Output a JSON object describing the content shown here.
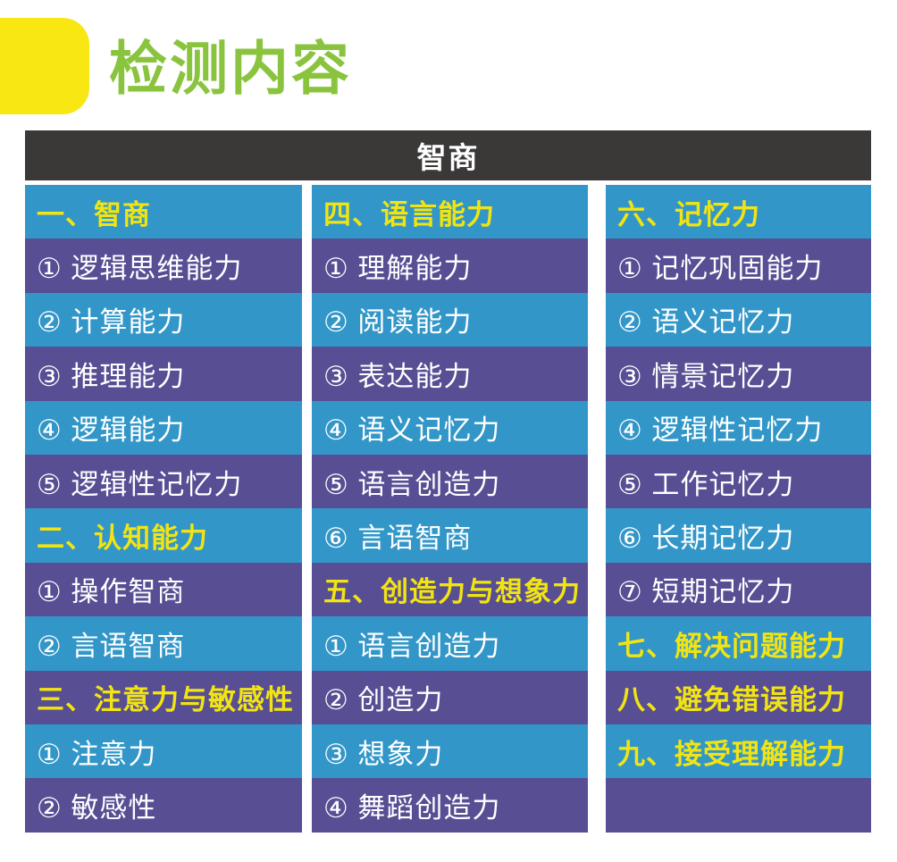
{
  "page": {
    "title": "检测内容",
    "header": "智商"
  },
  "colors": {
    "title_green": "#8ac43e",
    "accent_yellow": "#f8e712",
    "category_yellow": "#f2e412",
    "row_blue": "#3297c8",
    "row_purple": "#574e94",
    "header_dark": "#3b3838",
    "item_white": "#ffffff"
  },
  "table": {
    "columns": [
      {
        "rows": [
          {
            "type": "category",
            "label": "一、智商"
          },
          {
            "type": "item",
            "label": "① 逻辑思维能力"
          },
          {
            "type": "item",
            "label": "② 计算能力"
          },
          {
            "type": "item",
            "label": "③ 推理能力"
          },
          {
            "type": "item",
            "label": "④ 逻辑能力"
          },
          {
            "type": "item",
            "label": "⑤ 逻辑性记忆力"
          },
          {
            "type": "category",
            "label": "二、认知能力"
          },
          {
            "type": "item",
            "label": "① 操作智商"
          },
          {
            "type": "item",
            "label": "② 言语智商"
          },
          {
            "type": "category",
            "label": "三、注意力与敏感性"
          },
          {
            "type": "item",
            "label": "① 注意力"
          },
          {
            "type": "item",
            "label": "② 敏感性"
          }
        ]
      },
      {
        "rows": [
          {
            "type": "category",
            "label": "四、语言能力"
          },
          {
            "type": "item",
            "label": "① 理解能力"
          },
          {
            "type": "item",
            "label": "② 阅读能力"
          },
          {
            "type": "item",
            "label": "③ 表达能力"
          },
          {
            "type": "item",
            "label": "④ 语义记忆力"
          },
          {
            "type": "item",
            "label": "⑤ 语言创造力"
          },
          {
            "type": "item",
            "label": "⑥ 言语智商"
          },
          {
            "type": "category",
            "label": "五、创造力与想象力"
          },
          {
            "type": "item",
            "label": "① 语言创造力"
          },
          {
            "type": "item",
            "label": "② 创造力"
          },
          {
            "type": "item",
            "label": "③ 想象力"
          },
          {
            "type": "item",
            "label": "④ 舞蹈创造力"
          }
        ]
      },
      {
        "rows": [
          {
            "type": "category",
            "label": "六、记忆力"
          },
          {
            "type": "item",
            "label": "① 记忆巩固能力"
          },
          {
            "type": "item",
            "label": "② 语义记忆力"
          },
          {
            "type": "item",
            "label": "③ 情景记忆力"
          },
          {
            "type": "item",
            "label": "④ 逻辑性记忆力"
          },
          {
            "type": "item",
            "label": "⑤ 工作记忆力"
          },
          {
            "type": "item",
            "label": "⑥ 长期记忆力"
          },
          {
            "type": "item",
            "label": "⑦ 短期记忆力"
          },
          {
            "type": "category",
            "label": "七、解决问题能力"
          },
          {
            "type": "category",
            "label": "八、避免错误能力"
          },
          {
            "type": "category",
            "label": "九、接受理解能力"
          },
          {
            "type": "item",
            "label": ""
          }
        ]
      }
    ]
  }
}
